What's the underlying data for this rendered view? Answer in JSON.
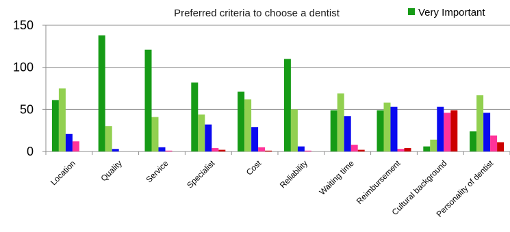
{
  "chart_data": {
    "type": "bar",
    "title": "Preferred criteria  to choose a dentist",
    "xlabel": "",
    "ylabel": "",
    "ylim": [
      0,
      150
    ],
    "yticks": [
      0,
      50,
      100,
      150
    ],
    "grid": true,
    "legend_position": "top-right",
    "categories": [
      "Location",
      "Quality",
      "Service",
      "Specialist",
      "Cost",
      "Reliability",
      "Waiting time",
      "Reimbursement",
      "Cultural background",
      "Personality of dentist"
    ],
    "series": [
      {
        "name": "Very Important",
        "color": "#169b16",
        "values": [
          61,
          138,
          121,
          82,
          71,
          110,
          49,
          49,
          6,
          24
        ]
      },
      {
        "color": "#92d050",
        "values": [
          75,
          30,
          41,
          44,
          62,
          50,
          69,
          58,
          14,
          67
        ]
      },
      {
        "color": "#0a0af0",
        "values": [
          21,
          3,
          5,
          32,
          29,
          6,
          42,
          53,
          53,
          46
        ]
      },
      {
        "color": "#ff3399",
        "values": [
          12,
          0,
          1,
          4,
          5,
          1,
          8,
          3,
          46,
          19
        ]
      },
      {
        "color": "#cc0000",
        "values": [
          0,
          0,
          0,
          2,
          1,
          0,
          2,
          4,
          49,
          11
        ]
      }
    ],
    "legend": [
      {
        "label": "Very Important",
        "color": "#169b16"
      }
    ]
  }
}
